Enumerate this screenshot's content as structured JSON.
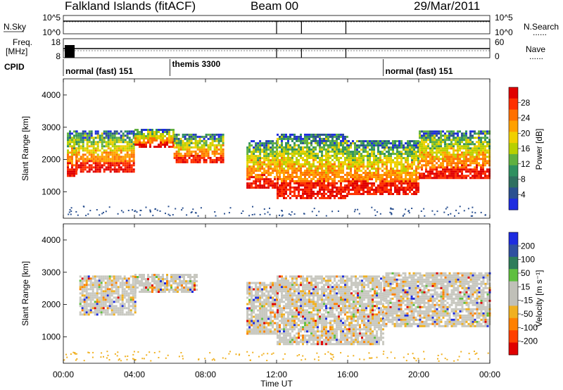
{
  "header": {
    "station": "Falkland Islands (fitACF)",
    "beam": "Beam 00",
    "date": "29/Mar/2011"
  },
  "sidepanel_labels": {
    "nsky": "N.Sky",
    "nsearch": "N.Search",
    "freq": "Freq.",
    "freq_unit": "[MHz]",
    "nave": "Nave",
    "cpid": "CPID",
    "nsky_ticks": [
      "10^5",
      "10^0"
    ],
    "nsearch_ticks": [
      "10^5",
      "10^0"
    ],
    "freq_ticks": [
      "18",
      "8"
    ],
    "nave_ticks": [
      "60",
      "0"
    ],
    "dots": "......"
  },
  "cpid_segments": [
    {
      "label": "normal (fast) 151",
      "start_hour": 0,
      "end_hour": 6
    },
    {
      "label": "themis 3300",
      "start_hour": 6,
      "end_hour": 18
    },
    {
      "label": "normal (fast) 151",
      "start_hour": 18,
      "end_hour": 24
    }
  ],
  "axes": {
    "y_label": "Slant Range [km]",
    "x_label": "Time UT",
    "x_ticks": [
      "00:00",
      "04:00",
      "08:00",
      "12:00",
      "16:00",
      "20:00",
      "00:00"
    ],
    "y_ticks": [
      "1000",
      "2000",
      "3000",
      "4000"
    ],
    "power_label": "Power [dB]",
    "velocity_label": "Velocity [m s⁻¹]"
  },
  "colorbars": {
    "power": {
      "ticks": [
        "28",
        "24",
        "20",
        "16",
        "12",
        "8",
        "4"
      ],
      "colors": [
        "#e00000",
        "#ff3000",
        "#ff7000",
        "#ffa000",
        "#f0d000",
        "#b8d000",
        "#60b040",
        "#2f9060",
        "#2f7060",
        "#2a5090",
        "#1e2ce0"
      ]
    },
    "velocity": {
      "ticks": [
        "200",
        "100",
        "50",
        "15",
        "-15",
        "-50",
        "-100",
        "-200"
      ],
      "colors": [
        "#1e2ce0",
        "#3050a0",
        "#2e7d5a",
        "#5fbf3f",
        "#c0c0b8",
        "#c0c0b8",
        "#f0b020",
        "#ff8000",
        "#ff4000",
        "#e00000"
      ]
    }
  },
  "chart_data": [
    {
      "type": "heatmap",
      "title": "Power",
      "x_range_hours": [
        0,
        24
      ],
      "y_range_km": [
        180,
        4500
      ],
      "colorbar_label": "Power [dB]",
      "colorbar_ticks": [
        28,
        24,
        20,
        16,
        12,
        8,
        4
      ],
      "echo_bands": [
        {
          "start_hour": 0.2,
          "end_hour": 0.7,
          "bottom_km": 1500,
          "top_km": 2900
        },
        {
          "start_hour": 0.7,
          "end_hour": 4.0,
          "bottom_km": 1600,
          "top_km": 2900
        },
        {
          "start_hour": 4.0,
          "end_hour": 6.2,
          "bottom_km": 2400,
          "top_km": 2950
        },
        {
          "start_hour": 6.2,
          "end_hour": 9.0,
          "bottom_km": 1900,
          "top_km": 2800
        },
        {
          "start_hour": 10.3,
          "end_hour": 12.0,
          "bottom_km": 1100,
          "top_km": 2600
        },
        {
          "start_hour": 12.0,
          "end_hour": 16.0,
          "bottom_km": 800,
          "top_km": 2800
        },
        {
          "start_hour": 16.0,
          "end_hour": 20.0,
          "bottom_km": 900,
          "top_km": 2600
        },
        {
          "start_hour": 20.0,
          "end_hour": 24.0,
          "bottom_km": 1400,
          "top_km": 2900
        }
      ]
    },
    {
      "type": "heatmap",
      "title": "Velocity",
      "x_range_hours": [
        0,
        24
      ],
      "y_range_km": [
        180,
        4500
      ],
      "colorbar_label": "Velocity [m s⁻¹]",
      "colorbar_ticks": [
        200,
        100,
        50,
        15,
        -15,
        -50,
        -100,
        -200
      ],
      "echo_bands": [
        {
          "start_hour": 0.9,
          "end_hour": 4.0,
          "bottom_km": 1700,
          "top_km": 2900
        },
        {
          "start_hour": 4.0,
          "end_hour": 7.5,
          "bottom_km": 2400,
          "top_km": 2950
        },
        {
          "start_hour": 10.3,
          "end_hour": 12.0,
          "bottom_km": 1100,
          "top_km": 2700
        },
        {
          "start_hour": 12.0,
          "end_hour": 18.0,
          "bottom_km": 800,
          "top_km": 2900
        },
        {
          "start_hour": 18.0,
          "end_hour": 24.0,
          "bottom_km": 1300,
          "top_km": 3000
        }
      ]
    }
  ]
}
